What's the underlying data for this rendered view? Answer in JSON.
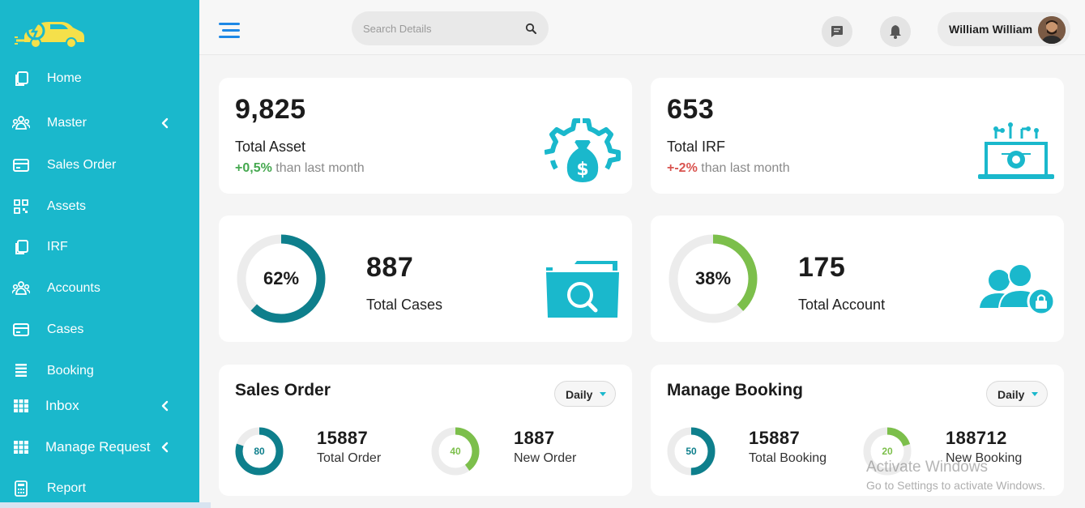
{
  "sidebar": {
    "logo_icon": "electric-car-icon",
    "items": [
      {
        "label": "Home",
        "icon": "copy-icon",
        "has_chevron": false
      },
      {
        "label": "Master",
        "icon": "users-icon",
        "has_chevron": true
      },
      {
        "label": "Sales Order",
        "icon": "card-icon",
        "has_chevron": false
      },
      {
        "label": "Assets",
        "icon": "qr-code-icon",
        "has_chevron": false
      },
      {
        "label": "IRF",
        "icon": "copy-icon",
        "has_chevron": false
      },
      {
        "label": "Accounts",
        "icon": "users-icon",
        "has_chevron": false
      },
      {
        "label": "Cases",
        "icon": "card-icon",
        "has_chevron": false
      },
      {
        "label": "Booking",
        "icon": "list-icon",
        "has_chevron": false
      },
      {
        "label": "Inbox",
        "icon": "grid-icon",
        "has_chevron": true
      },
      {
        "label": "Manage Request",
        "icon": "grid-icon",
        "has_chevron": true
      },
      {
        "label": "Report",
        "icon": "calculator-icon",
        "has_chevron": false
      }
    ],
    "bg_color": "#1ab8cc"
  },
  "header": {
    "search_placeholder": "Search Details",
    "user_name": "William William",
    "icons": [
      "menu-icon",
      "search-icon",
      "chat-icon",
      "bell-icon"
    ]
  },
  "stats": {
    "total_asset": {
      "value": "9,825",
      "label": "Total Asset",
      "delta": "+0,5%",
      "delta_suffix": " than last month",
      "icon": "money-gear-icon"
    },
    "total_irf": {
      "value": "653",
      "label": "Total IRF",
      "delta": "+-2%",
      "delta_suffix": " than last month",
      "icon": "laptop-circuit-icon"
    },
    "total_cases": {
      "value": "887",
      "label": "Total Cases",
      "percent": 62,
      "percent_text": "62%",
      "icon": "folder-search-icon"
    },
    "total_account": {
      "value": "175",
      "label": "Total Account",
      "percent": 38,
      "percent_text": "38%",
      "icon": "users-lock-icon"
    }
  },
  "sales_order": {
    "title": "Sales Order",
    "dropdown": "Daily",
    "items": [
      {
        "ring_value": 80,
        "ring_text": "80",
        "value": "15887",
        "label": "Total Order"
      },
      {
        "ring_value": 40,
        "ring_text": "40",
        "value": "1887",
        "label": "New Order"
      }
    ]
  },
  "manage_booking": {
    "title": "Manage Booking",
    "dropdown": "Daily",
    "items": [
      {
        "ring_value": 50,
        "ring_text": "50",
        "value": "15887",
        "label": "Total Booking"
      },
      {
        "ring_value": 20,
        "ring_text": "20",
        "value": "188712",
        "label": "New Booking"
      }
    ]
  },
  "watermark": {
    "line1": "Activate Windows",
    "line2": "Go to Settings to activate Windows."
  },
  "colors": {
    "teal": "#1ab8cc",
    "dark_teal": "#0e7f8c",
    "green": "#7cbf4b",
    "up": "#45a84f",
    "down": "#d9534f"
  }
}
